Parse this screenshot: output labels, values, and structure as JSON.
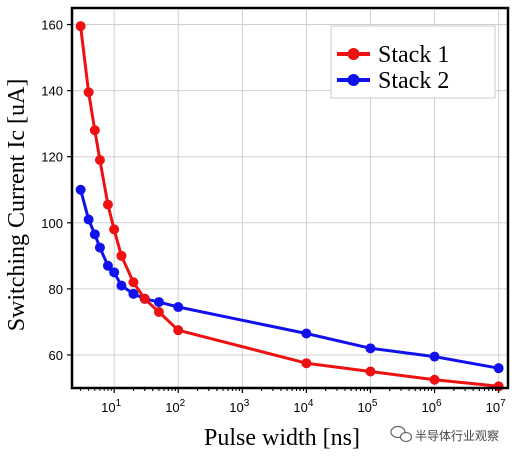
{
  "chart_data": {
    "type": "line",
    "xlabel": "Pulse width [ns]",
    "ylabel": "Switching Current  Ic [uA]",
    "x_scale": "log",
    "xlim": [
      2.2,
      14000000
    ],
    "ylim": [
      50,
      165
    ],
    "x_ticks": [
      10,
      100,
      1000,
      10000,
      100000,
      1000000,
      10000000
    ],
    "x_tick_labels": [
      {
        "base": "10",
        "exp": "1"
      },
      {
        "base": "10",
        "exp": "2"
      },
      {
        "base": "10",
        "exp": "3"
      },
      {
        "base": "10",
        "exp": "4"
      },
      {
        "base": "10",
        "exp": "5"
      },
      {
        "base": "10",
        "exp": "6"
      },
      {
        "base": "10",
        "exp": "7"
      }
    ],
    "y_ticks": [
      60,
      80,
      100,
      120,
      140,
      160
    ],
    "grid": true,
    "legend_position": "top-right",
    "series": [
      {
        "name": "Stack 1",
        "color": "#ee1111",
        "x": [
          3,
          4,
          5,
          6,
          8,
          10,
          13,
          20,
          30,
          50,
          100,
          10000,
          100000,
          1000000,
          10000000
        ],
        "y": [
          159.5,
          139.5,
          128,
          119,
          105.5,
          98,
          90,
          82,
          77,
          73,
          67.5,
          57.5,
          55,
          52.5,
          50.5
        ]
      },
      {
        "name": "Stack 2",
        "color": "#1111ee",
        "x": [
          3,
          4,
          5,
          6,
          8,
          10,
          13,
          20,
          30,
          50,
          100,
          10000,
          100000,
          1000000,
          10000000
        ],
        "y": [
          110,
          101,
          96.5,
          92.5,
          87,
          85,
          81,
          78.5,
          77,
          76,
          74.5,
          66.5,
          62,
          59.5,
          56
        ]
      }
    ]
  },
  "watermark": {
    "text": "半导体行业观察",
    "icon": "wechat-icon"
  }
}
